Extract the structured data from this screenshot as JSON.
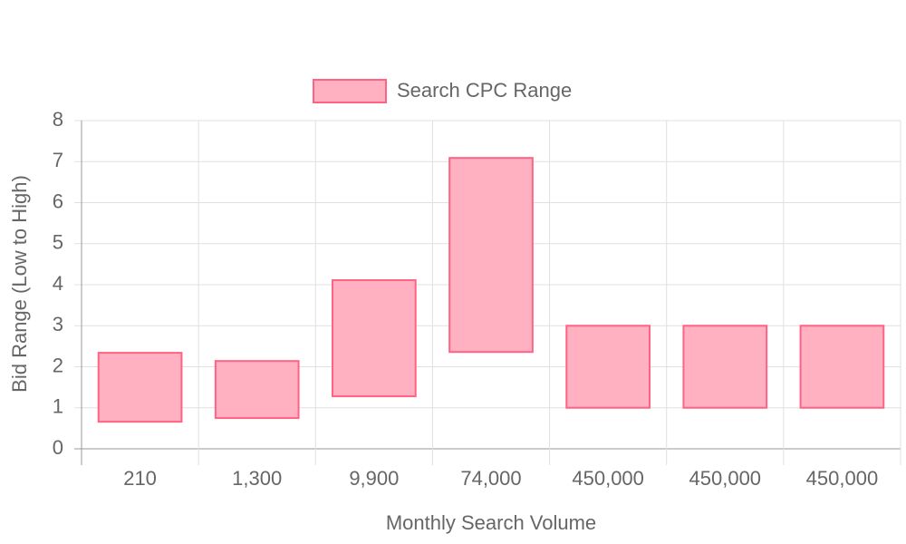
{
  "chart_data": {
    "type": "floating-bar",
    "x_label": "Monthly Search Volume",
    "y_label": "Bid Range (Low to High)",
    "categories": [
      "210",
      "1,300",
      "9,900",
      "74,000",
      "450,000",
      "450,000",
      "450,000"
    ],
    "series": [
      {
        "name": "Search CPC Range",
        "color": "#ff6384",
        "fill": "#ffb1c1",
        "low": [
          0.66,
          0.75,
          1.28,
          2.36,
          1,
          1,
          1
        ],
        "high": [
          2.34,
          2.14,
          4.11,
          7.09,
          3,
          3,
          3
        ]
      }
    ],
    "ylim": [
      0,
      8
    ],
    "yticks": [
      0,
      1,
      2,
      3,
      4,
      5,
      6,
      7,
      8
    ],
    "grid": true,
    "legend": "top"
  }
}
